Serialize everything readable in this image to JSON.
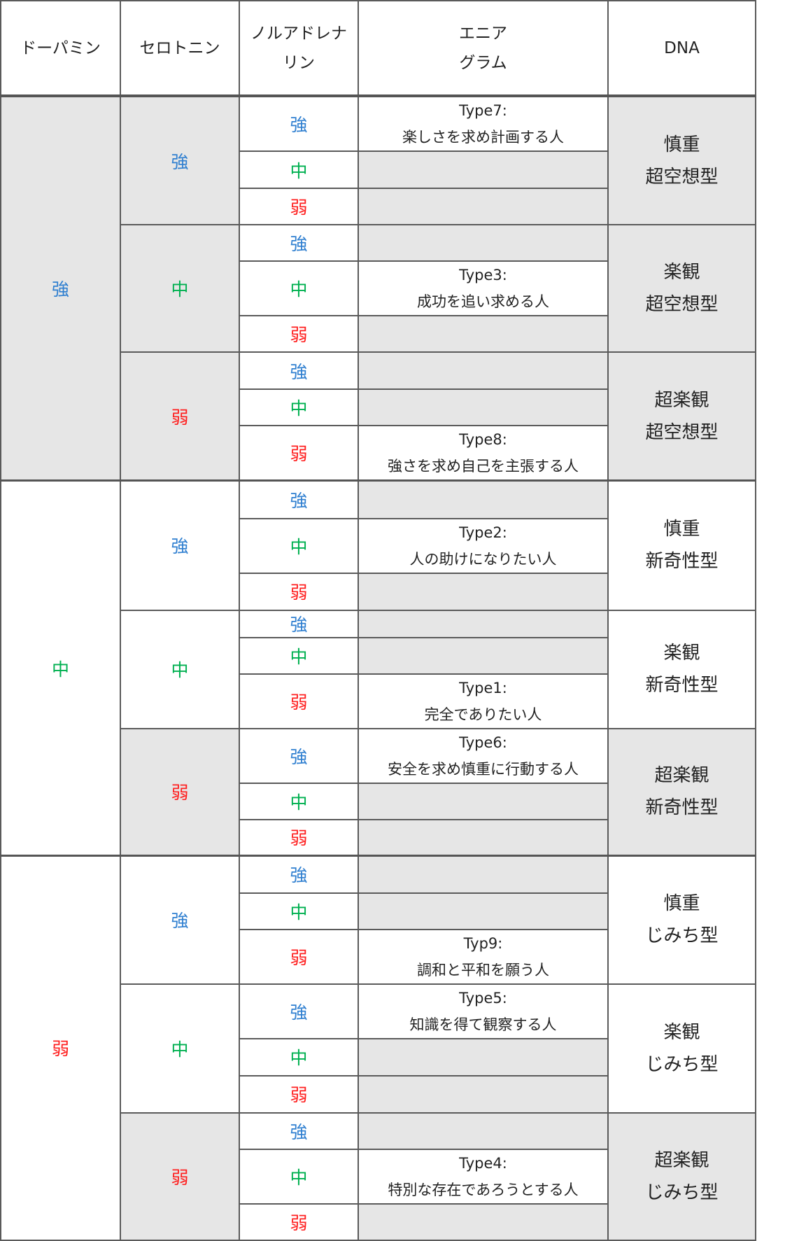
{
  "header": {
    "dopamine": "ドーパミン",
    "serotonin": "セロトニン",
    "noradrenaline": "ノルアドレナリン",
    "enneagram_line1": "エニア",
    "enneagram_line2": "グラム",
    "dna": "DNA"
  },
  "colors": {
    "強": "#2f7fd0",
    "中": "#00b050",
    "弱": "#ff2020",
    "shade": "#e6e6e6"
  },
  "groups": [
    {
      "level": "強",
      "serotonin": [
        {
          "level": "強",
          "dna": [
            "慎重",
            "超空想型"
          ],
          "rows": [
            {
              "level": "強",
              "type": "Type7:",
              "desc": "楽しさを求め計画する人"
            },
            {
              "level": "中"
            },
            {
              "level": "弱"
            }
          ]
        },
        {
          "level": "中",
          "dna": [
            "楽観",
            "超空想型"
          ],
          "rows": [
            {
              "level": "強"
            },
            {
              "level": "中",
              "type": "Type3:",
              "desc": "成功を追い求める人"
            },
            {
              "level": "弱"
            }
          ]
        },
        {
          "level": "弱",
          "dna": [
            "超楽観",
            "超空想型"
          ],
          "rows": [
            {
              "level": "強"
            },
            {
              "level": "中"
            },
            {
              "level": "弱",
              "type": "Type8:",
              "desc": "強さを求め自己を主張する人"
            }
          ]
        }
      ]
    },
    {
      "level": "中",
      "serotonin": [
        {
          "level": "強",
          "dna": [
            "慎重",
            "新奇性型"
          ],
          "rows": [
            {
              "level": "強"
            },
            {
              "level": "中",
              "type": "Type2:",
              "desc": "人の助けになりたい人"
            },
            {
              "level": "弱"
            }
          ]
        },
        {
          "level": "中",
          "dna": [
            "楽観",
            "新奇性型"
          ],
          "rows": [
            {
              "level": "強"
            },
            {
              "level": "中"
            },
            {
              "level": "弱",
              "type": "Type1:",
              "desc": "完全でありたい人"
            }
          ]
        },
        {
          "level": "弱",
          "dna": [
            "超楽観",
            "新奇性型"
          ],
          "rows": [
            {
              "level": "強",
              "type": "Type6:",
              "desc": "安全を求め慎重に行動する人"
            },
            {
              "level": "中"
            },
            {
              "level": "弱"
            }
          ]
        }
      ]
    },
    {
      "level": "弱",
      "serotonin": [
        {
          "level": "強",
          "dna": [
            "慎重",
            "じみち型"
          ],
          "rows": [
            {
              "level": "強"
            },
            {
              "level": "中"
            },
            {
              "level": "弱",
              "type": "Typ9:",
              "desc": "調和と平和を願う人"
            }
          ]
        },
        {
          "level": "中",
          "dna": [
            "楽観",
            "じみち型"
          ],
          "rows": [
            {
              "level": "強",
              "type": "Type5:",
              "desc": "知識を得て観察する人"
            },
            {
              "level": "中"
            },
            {
              "level": "弱"
            }
          ]
        },
        {
          "level": "弱",
          "dna": [
            "超楽観",
            "じみち型"
          ],
          "rows": [
            {
              "level": "強"
            },
            {
              "level": "中",
              "type": "Type4:",
              "desc": "特別な存在であろうとする人"
            },
            {
              "level": "弱"
            }
          ]
        }
      ]
    }
  ]
}
